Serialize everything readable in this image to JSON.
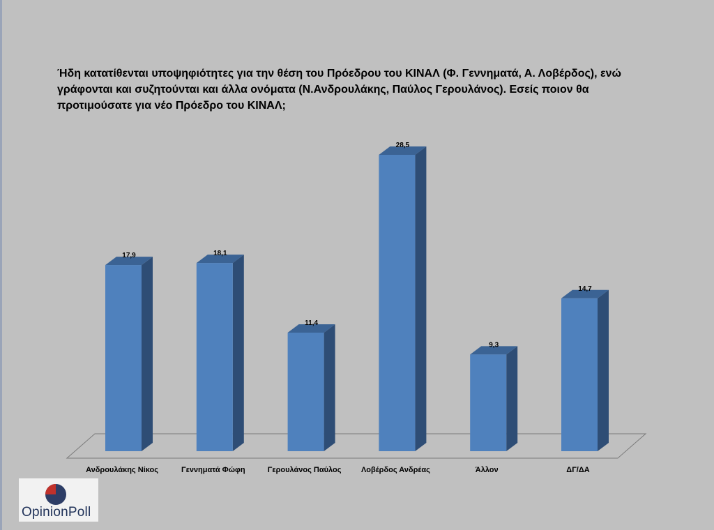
{
  "question": "Ήδη κατατίθενται υποψηφιότητες για την θέση του Πρόεδρου του ΚΙΝΑΛ (Φ. Γεννηματά, Α. Λοβέρδος), ενώ γράφονται και συζητούνται και άλλα ονόματα (Ν.Ανδρουλάκης, Παύλος Γερουλάνος). Εσείς ποιον θα προτιμούσατε για νέο Πρόεδρο του ΚΙΝΑΛ;",
  "logo": {
    "text_opinion": "Opinion",
    "text_poll": "Poll",
    "text_color": "#1f3158",
    "icon_colors": [
      "#2d3d66",
      "#c0312b"
    ]
  },
  "chart_data": {
    "type": "bar",
    "style": "3d-column",
    "categories": [
      "Ανδρουλάκης Νίκος",
      "Γεννηματά Φώφη",
      "Γερουλάνος Παύλος",
      "Λοβέρδος Ανδρέας",
      "Άλλον",
      "ΔΓ/ΔΑ"
    ],
    "values": [
      17.9,
      18.1,
      11.4,
      28.5,
      9.3,
      14.7
    ],
    "value_labels": [
      "17,9",
      "18,1",
      "11,4",
      "28,5",
      "9,3",
      "14,7"
    ],
    "ylim": [
      0,
      28.5
    ],
    "grid": false,
    "legend": "none",
    "colors": {
      "bar_front": "#4f81bd",
      "bar_side": "#2e4d75",
      "bar_top": "#3b6394",
      "floor": "#c0c0c0"
    }
  }
}
